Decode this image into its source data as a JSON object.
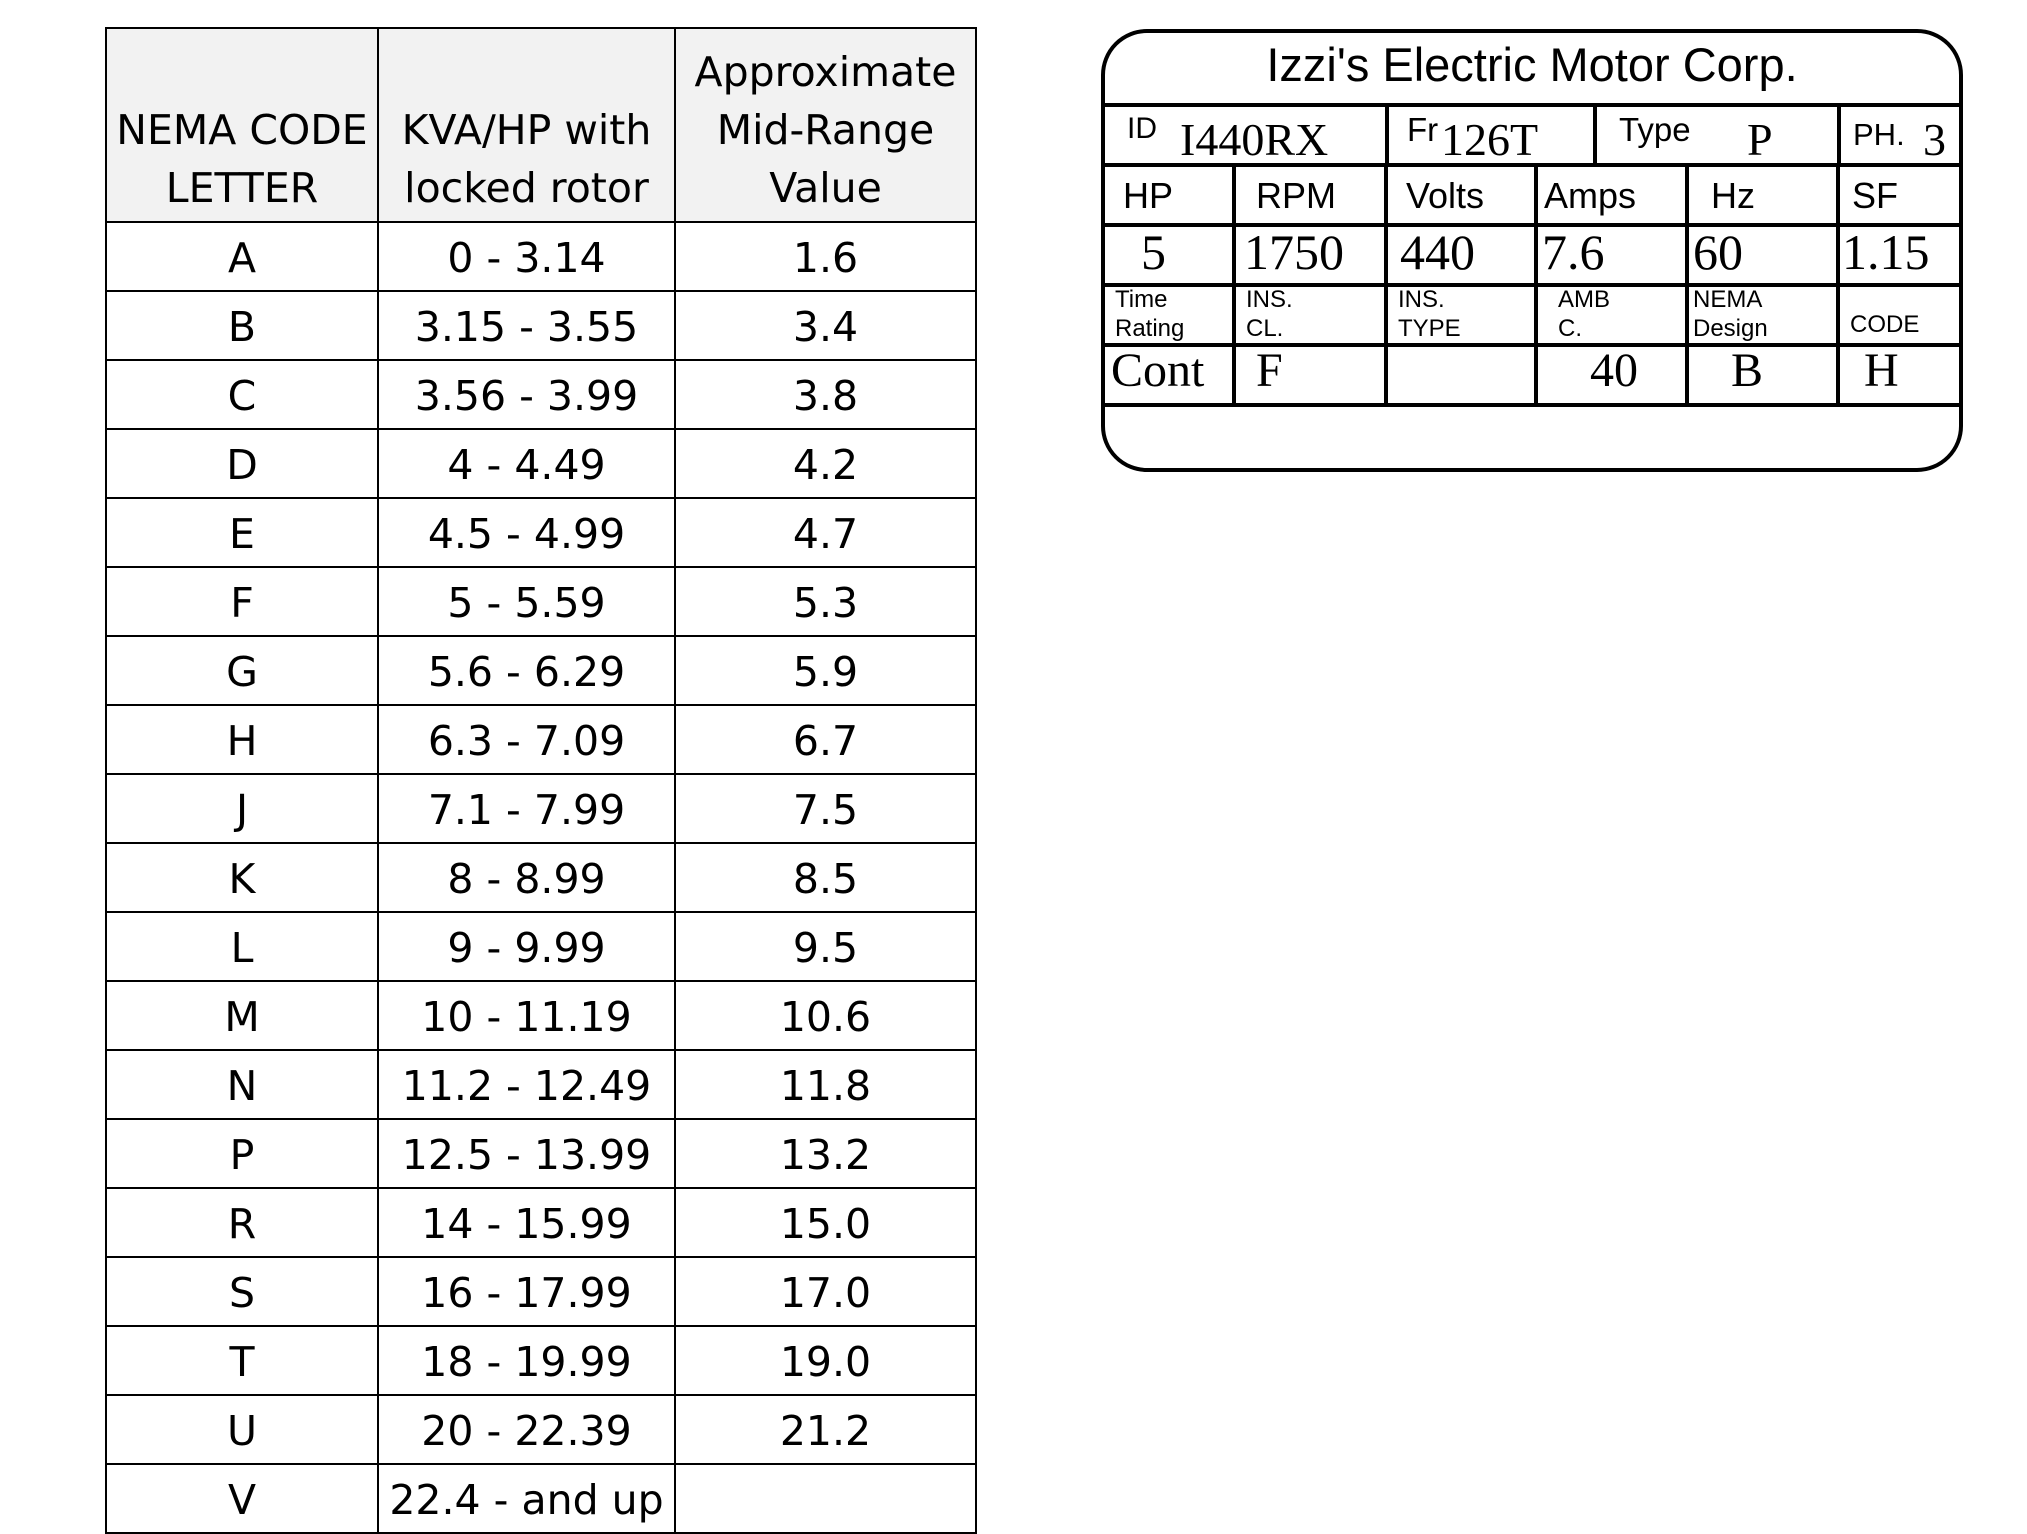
{
  "nema_table": {
    "headers": {
      "col1_line1": "NEMA CODE",
      "col1_line2": "LETTER",
      "col2_line1": "KVA/HP with",
      "col2_line2": "locked rotor",
      "col3_line1": "Approximate",
      "col3_line2": "Mid-Range",
      "col3_line3": "Value"
    },
    "rows": [
      {
        "letter": "A",
        "range": "0 - 3.14",
        "mid": "1.6"
      },
      {
        "letter": "B",
        "range": "3.15 - 3.55",
        "mid": "3.4"
      },
      {
        "letter": "C",
        "range": "3.56 - 3.99",
        "mid": "3.8"
      },
      {
        "letter": "D",
        "range": "4 - 4.49",
        "mid": "4.2"
      },
      {
        "letter": "E",
        "range": "4.5 - 4.99",
        "mid": "4.7"
      },
      {
        "letter": "F",
        "range": "5 - 5.59",
        "mid": "5.3"
      },
      {
        "letter": "G",
        "range": "5.6 - 6.29",
        "mid": "5.9"
      },
      {
        "letter": "H",
        "range": "6.3 - 7.09",
        "mid": "6.7"
      },
      {
        "letter": "J",
        "range": "7.1 - 7.99",
        "mid": "7.5"
      },
      {
        "letter": "K",
        "range": "8 - 8.99",
        "mid": "8.5"
      },
      {
        "letter": "L",
        "range": "9 - 9.99",
        "mid": "9.5"
      },
      {
        "letter": "M",
        "range": "10 - 11.19",
        "mid": "10.6"
      },
      {
        "letter": "N",
        "range": "11.2 - 12.49",
        "mid": "11.8"
      },
      {
        "letter": "P",
        "range": "12.5 - 13.99",
        "mid": "13.2"
      },
      {
        "letter": "R",
        "range": "14 - 15.99",
        "mid": "15.0"
      },
      {
        "letter": "S",
        "range": "16 - 17.99",
        "mid": "17.0"
      },
      {
        "letter": "T",
        "range": "18 - 19.99",
        "mid": "19.0"
      },
      {
        "letter": "U",
        "range": "20 - 22.39",
        "mid": "21.2"
      },
      {
        "letter": "V",
        "range": "22.4 - and up",
        "mid": ""
      }
    ]
  },
  "nameplate": {
    "title": "Izzi's Electric Motor Corp.",
    "row1": {
      "id_label": "ID",
      "id_value": "I440RX",
      "frame_label": "Fr",
      "frame_value": "126T",
      "type_label": "Type",
      "type_value": "P",
      "phase_label": "PH.",
      "phase_value": "3"
    },
    "row2": {
      "hp_label": "HP",
      "rpm_label": "RPM",
      "volts_label": "Volts",
      "amps_label": "Amps",
      "hz_label": "Hz",
      "sf_label": "SF"
    },
    "row3": {
      "hp": "5",
      "rpm": "1750",
      "volts": "440",
      "amps": "7.6",
      "hz": "60",
      "sf": "1.15"
    },
    "row4": {
      "time_line1": "Time",
      "time_line2": "Rating",
      "inscl_line1": "INS.",
      "inscl_line2": "CL.",
      "instype_line1": "INS.",
      "instype_line2": "TYPE",
      "amb_line1": "AMB",
      "amb_line2": "C.",
      "design_line1": "NEMA",
      "design_line2": "Design",
      "code_label": "CODE"
    },
    "row5": {
      "time_rating": "Cont",
      "ins_class": "F",
      "ins_type": "",
      "ambient": "40",
      "design": "B",
      "code": "H"
    }
  }
}
